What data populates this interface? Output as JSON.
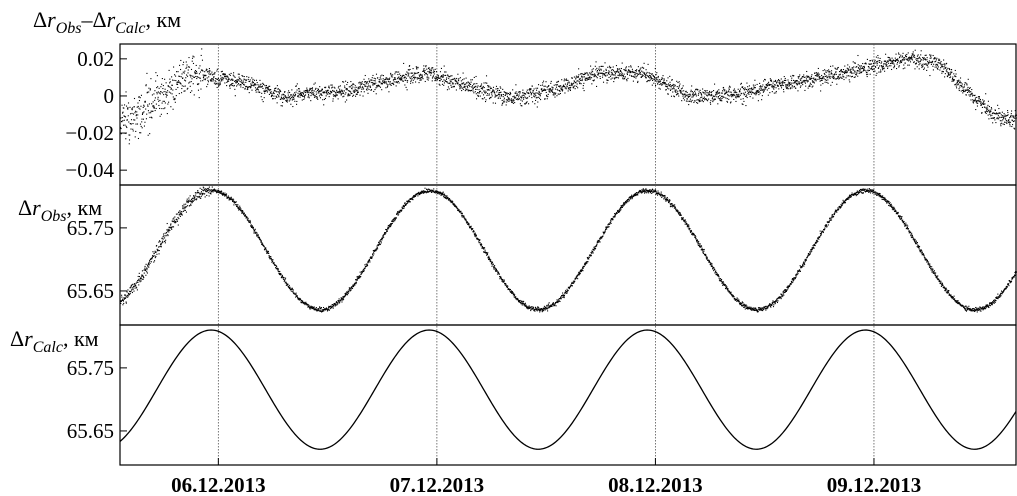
{
  "chart_data": [
    {
      "type": "scatter",
      "ylabel": {
        "delta": "Δ",
        "r": "r",
        "obs": "Obs",
        "minus": "–",
        "calc": "Calc",
        "unit": ", км"
      },
      "yticks": [
        "0.02",
        "0",
        "−0.02",
        "−0.04"
      ],
      "ytick_values": [
        0.02,
        0,
        -0.02,
        -0.04
      ],
      "ylim": [
        -0.048,
        0.028
      ],
      "xlim": [
        0,
        4.1
      ],
      "trend": {
        "x": [
          0,
          0.1,
          0.2,
          0.3,
          0.35,
          0.45,
          0.6,
          0.75,
          0.9,
          1.05,
          1.2,
          1.4,
          1.6,
          1.8,
          2.0,
          2.2,
          2.4,
          2.6,
          2.8,
          3.0,
          3.2,
          3.4,
          3.6,
          3.75,
          3.85,
          4.0,
          4.1
        ],
        "y": [
          -0.012,
          -0.008,
          0.0,
          0.012,
          0.012,
          0.01,
          0.006,
          0.0,
          0.002,
          0.003,
          0.008,
          0.013,
          0.005,
          -0.001,
          0.004,
          0.013,
          0.012,
          0.0,
          0.001,
          0.006,
          0.01,
          0.015,
          0.02,
          0.018,
          0.005,
          -0.01,
          -0.012
        ]
      },
      "noise": 0.0022
    },
    {
      "type": "scatter",
      "ylabel": {
        "delta": "Δ",
        "r": "r",
        "sub": "Obs",
        "unit": ", км"
      },
      "yticks": [
        "65.75",
        "65.65"
      ],
      "ytick_values": [
        65.75,
        65.65
      ],
      "ylim": [
        65.596,
        65.818
      ],
      "xlim": [
        0,
        4.1
      ],
      "sine": {
        "mean": 65.7155,
        "amp": 0.0945,
        "period": 0.998,
        "phase_x": 0.417
      },
      "noise": 0.0018
    },
    {
      "type": "line",
      "ylabel": {
        "delta": "Δ",
        "r": "r",
        "sub": "Calc",
        "unit": ", км"
      },
      "yticks": [
        "65.75",
        "65.65"
      ],
      "ytick_values": [
        65.75,
        65.65
      ],
      "ylim": [
        65.596,
        65.818
      ],
      "xlim": [
        0,
        4.1
      ],
      "sine": {
        "mean": 65.7155,
        "amp": 0.0945,
        "period": 0.998,
        "phase_x": 0.417
      }
    }
  ],
  "x_axis": {
    "ticks": [
      "06.12.2013",
      "07.12.2013",
      "08.12.2013",
      "09.12.2013"
    ],
    "tick_values": [
      0.45,
      1.45,
      2.45,
      3.45
    ]
  }
}
